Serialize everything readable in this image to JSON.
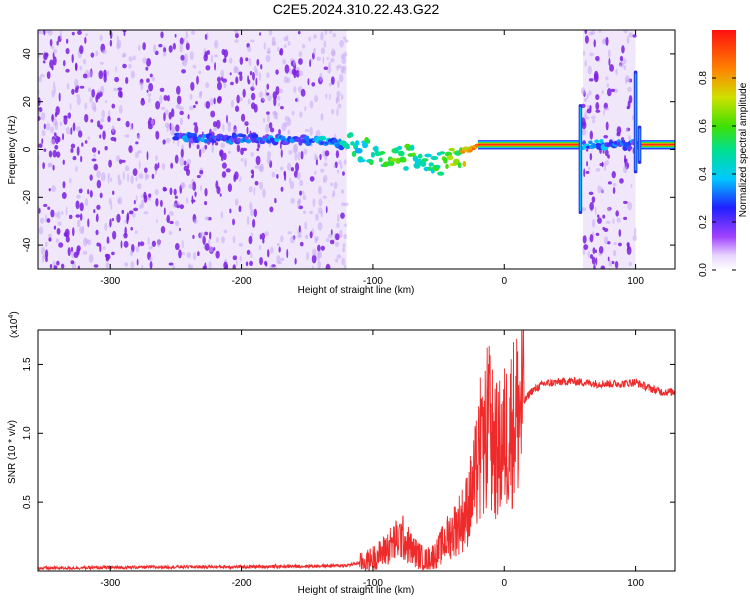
{
  "title": "C2E5.2024.310.22.43.G22",
  "colors": {
    "spectrogram_speckle": "#7b1fe0",
    "spectrogram_haze": "#e4d6f6",
    "snr_line": "#ee2a2a"
  },
  "chart_data": [
    {
      "type": "heatmap",
      "xlabel": "Height of straight line (km)",
      "ylabel": "Frequency (Hz)",
      "xlim": [
        -355,
        130
      ],
      "ylim": [
        -50,
        50
      ],
      "xticks": [
        -300,
        -200,
        -100,
        0,
        100
      ],
      "xtick_labels": [
        "-300",
        "-200",
        "-100",
        "0",
        "100"
      ],
      "yticks": [
        -40,
        -20,
        0,
        20,
        40
      ],
      "ytick_labels": [
        "-40",
        "-20",
        "0",
        "20",
        "40"
      ],
      "grid": false,
      "colorbar": {
        "label": "Normalized spectral amplitude",
        "range": [
          0,
          1
        ],
        "ticks": [
          0.0,
          0.2,
          0.4,
          0.6,
          0.8
        ],
        "tick_labels": [
          "0.0",
          "0.2",
          "0.4",
          "0.6",
          "0.8"
        ],
        "colormap": "rainbow"
      },
      "regions": [
        {
          "description": "noise",
          "x_from": -355,
          "x_to": -120
        },
        {
          "description": "noise",
          "x_from": 60,
          "x_to": 100
        }
      ],
      "signal_trace": [
        [
          -250,
          5
        ],
        [
          -200,
          4.5
        ],
        [
          -150,
          4
        ],
        [
          -120,
          2
        ],
        [
          -100,
          -1
        ],
        [
          -80,
          -3
        ],
        [
          -60,
          -5
        ],
        [
          -45,
          -6
        ],
        [
          -35,
          -2
        ],
        [
          -20,
          1
        ],
        [
          0,
          2
        ],
        [
          55,
          2
        ],
        [
          60,
          2
        ],
        [
          100,
          2
        ],
        [
          105,
          2
        ],
        [
          130,
          2
        ]
      ],
      "signal_amplitude": [
        [
          -250,
          0.25
        ],
        [
          -200,
          0.25
        ],
        [
          -150,
          0.3
        ],
        [
          -120,
          0.4
        ],
        [
          -100,
          0.5
        ],
        [
          -80,
          0.55
        ],
        [
          -60,
          0.5
        ],
        [
          -45,
          0.55
        ],
        [
          -35,
          0.65
        ],
        [
          -20,
          0.9
        ],
        [
          0,
          0.95
        ],
        [
          55,
          0.95
        ],
        [
          60,
          0.3
        ],
        [
          100,
          0.25
        ],
        [
          105,
          0.95
        ],
        [
          130,
          0.95
        ]
      ],
      "vertical_streaks": [
        {
          "x": 58,
          "y_from": -27,
          "y_to": 19
        },
        {
          "x": 100,
          "y_from": -10,
          "y_to": 33
        },
        {
          "x": 103,
          "y_from": -6,
          "y_to": 10
        }
      ]
    },
    {
      "type": "line",
      "xlabel": "Height of straight line (km)",
      "ylabel": "SNR (10 * v/v)",
      "y_multiplier_label": "(x10",
      "y_multiplier_exponent": "4",
      "xlim": [
        -355,
        130
      ],
      "ylim": [
        0,
        1.75
      ],
      "xticks": [
        -300,
        -200,
        -100,
        0,
        100
      ],
      "xtick_labels": [
        "-300",
        "-200",
        "-100",
        "0",
        "100"
      ],
      "yticks": [
        0.5,
        1.0,
        1.5
      ],
      "ytick_labels": [
        "0.5",
        "1.0",
        "1.5"
      ],
      "grid": false,
      "series": [
        {
          "x": [
            -355,
            -300,
            -250,
            -200,
            -150,
            -120,
            -105,
            -95,
            -85,
            -78,
            -70,
            -60,
            -52,
            -45,
            -38,
            -30,
            -25,
            -20,
            -15,
            -12,
            -10,
            -5,
            0,
            10,
            20,
            30,
            40,
            50,
            60,
            70,
            80,
            90,
            100,
            110,
            120,
            130
          ],
          "y": [
            0.02,
            0.025,
            0.03,
            0.03,
            0.035,
            0.04,
            0.07,
            0.12,
            0.2,
            0.25,
            0.15,
            0.08,
            0.12,
            0.22,
            0.3,
            0.4,
            0.55,
            0.75,
            0.9,
            1.1,
            0.95,
            0.85,
            0.95,
            1.15,
            1.3,
            1.36,
            1.37,
            1.38,
            1.37,
            1.36,
            1.36,
            1.36,
            1.37,
            1.33,
            1.3,
            1.3
          ]
        }
      ]
    }
  ]
}
